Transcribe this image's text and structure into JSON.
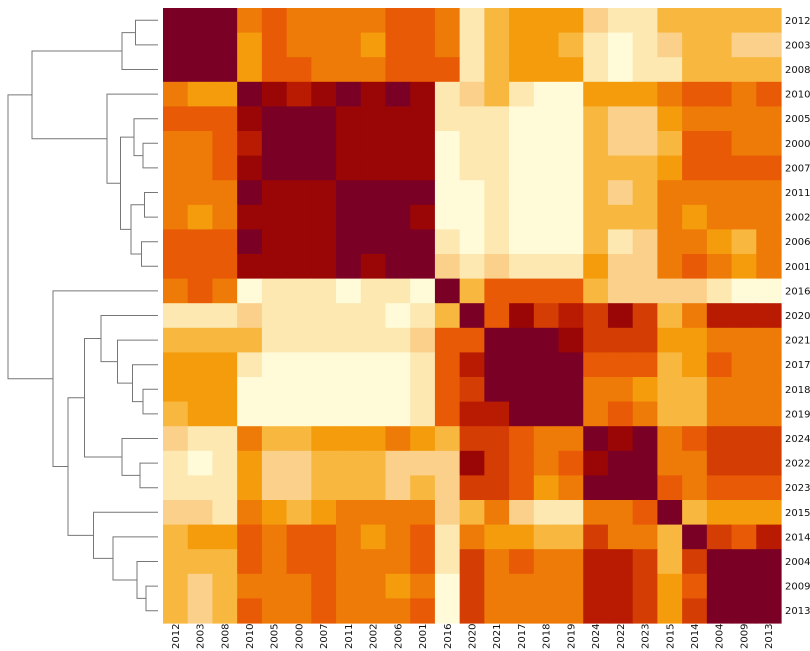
{
  "chart_data": {
    "type": "heatmap",
    "title": "",
    "xlabel": "",
    "ylabel": "",
    "labels": [
      "2012",
      "2003",
      "2008",
      "2010",
      "2005",
      "2000",
      "2007",
      "2011",
      "2002",
      "2006",
      "2001",
      "2016",
      "2020",
      "2021",
      "2017",
      "2018",
      "2019",
      "2024",
      "2022",
      "2023",
      "2015",
      "2014",
      "2004",
      "2009",
      "2013"
    ],
    "color_scale": [
      "#fffbd9",
      "#fce8b0",
      "#fad08a",
      "#f8b840",
      "#f49c0c",
      "#ee7a08",
      "#e85a05",
      "#d43e04",
      "#b81a02",
      "#9a0506",
      "#7a0025"
    ],
    "values": [
      [
        10,
        10,
        10,
        5,
        6,
        5,
        5,
        5,
        5,
        6,
        6,
        5,
        1,
        3,
        4,
        4,
        4,
        2,
        1,
        1,
        3,
        3,
        3,
        3,
        3
      ],
      [
        10,
        10,
        10,
        4,
        6,
        5,
        5,
        5,
        4,
        6,
        6,
        5,
        1,
        3,
        4,
        4,
        3,
        1,
        0,
        1,
        2,
        3,
        3,
        2,
        2
      ],
      [
        10,
        10,
        10,
        4,
        6,
        6,
        5,
        5,
        5,
        6,
        6,
        6,
        1,
        3,
        4,
        4,
        4,
        1,
        0,
        1,
        1,
        3,
        3,
        3,
        3
      ],
      [
        5,
        4,
        4,
        10,
        9,
        8,
        9,
        10,
        9,
        10,
        9,
        1,
        2,
        3,
        1,
        0,
        0,
        4,
        4,
        4,
        5,
        6,
        6,
        5,
        6
      ],
      [
        6,
        6,
        6,
        9,
        10,
        10,
        10,
        9,
        9,
        9,
        9,
        1,
        1,
        1,
        0,
        0,
        0,
        3,
        2,
        2,
        4,
        5,
        5,
        5,
        5
      ],
      [
        5,
        5,
        6,
        8,
        10,
        10,
        10,
        9,
        9,
        9,
        9,
        0,
        1,
        1,
        0,
        0,
        0,
        3,
        2,
        2,
        3,
        6,
        6,
        5,
        5
      ],
      [
        5,
        5,
        6,
        9,
        10,
        10,
        10,
        9,
        9,
        9,
        9,
        0,
        1,
        1,
        0,
        0,
        0,
        3,
        3,
        3,
        4,
        6,
        6,
        6,
        6
      ],
      [
        5,
        5,
        5,
        10,
        9,
        9,
        9,
        10,
        10,
        10,
        10,
        0,
        0,
        1,
        0,
        0,
        0,
        3,
        2,
        3,
        5,
        5,
        5,
        5,
        5
      ],
      [
        5,
        4,
        5,
        9,
        9,
        9,
        9,
        10,
        10,
        10,
        9,
        0,
        0,
        1,
        0,
        0,
        0,
        3,
        3,
        3,
        5,
        4,
        5,
        5,
        5
      ],
      [
        6,
        6,
        6,
        10,
        9,
        9,
        9,
        10,
        10,
        10,
        10,
        1,
        0,
        1,
        0,
        0,
        0,
        3,
        1,
        2,
        5,
        5,
        4,
        3,
        5
      ],
      [
        6,
        6,
        6,
        9,
        9,
        9,
        9,
        10,
        9,
        10,
        10,
        2,
        1,
        2,
        1,
        1,
        1,
        4,
        2,
        2,
        5,
        6,
        5,
        4,
        5
      ],
      [
        5,
        6,
        5,
        0,
        1,
        1,
        1,
        0,
        1,
        1,
        0,
        10,
        3,
        6,
        6,
        6,
        6,
        3,
        2,
        2,
        2,
        2,
        1,
        0,
        0
      ],
      [
        1,
        1,
        1,
        2,
        1,
        1,
        1,
        1,
        1,
        0,
        1,
        3,
        10,
        6,
        9,
        7,
        8,
        7,
        9,
        7,
        3,
        5,
        8,
        8,
        8
      ],
      [
        3,
        3,
        3,
        3,
        1,
        1,
        1,
        1,
        1,
        1,
        2,
        6,
        6,
        10,
        10,
        10,
        9,
        7,
        7,
        7,
        4,
        4,
        5,
        5,
        5
      ],
      [
        4,
        4,
        4,
        1,
        0,
        0,
        0,
        0,
        0,
        0,
        1,
        6,
        8,
        10,
        10,
        10,
        10,
        6,
        6,
        6,
        3,
        4,
        6,
        5,
        5
      ],
      [
        4,
        4,
        4,
        0,
        0,
        0,
        0,
        0,
        0,
        0,
        1,
        6,
        7,
        10,
        10,
        10,
        10,
        5,
        5,
        4,
        3,
        3,
        5,
        5,
        5
      ],
      [
        3,
        4,
        4,
        0,
        0,
        0,
        0,
        0,
        0,
        0,
        1,
        6,
        8,
        8,
        10,
        10,
        10,
        5,
        6,
        5,
        3,
        3,
        5,
        5,
        5
      ],
      [
        2,
        1,
        1,
        5,
        3,
        3,
        4,
        4,
        4,
        5,
        4,
        3,
        7,
        7,
        6,
        5,
        5,
        10,
        9,
        10,
        5,
        6,
        7,
        7,
        7
      ],
      [
        1,
        0,
        1,
        4,
        2,
        2,
        3,
        3,
        3,
        2,
        2,
        2,
        9,
        7,
        6,
        5,
        6,
        9,
        10,
        10,
        5,
        5,
        7,
        7,
        7
      ],
      [
        1,
        1,
        1,
        4,
        2,
        2,
        3,
        3,
        3,
        2,
        3,
        2,
        7,
        7,
        6,
        4,
        5,
        10,
        10,
        10,
        6,
        5,
        6,
        6,
        6
      ],
      [
        2,
        2,
        1,
        5,
        4,
        3,
        4,
        5,
        5,
        5,
        5,
        2,
        3,
        5,
        2,
        1,
        1,
        5,
        5,
        6,
        10,
        3,
        4,
        4,
        4
      ],
      [
        3,
        4,
        4,
        6,
        5,
        6,
        6,
        5,
        4,
        5,
        6,
        1,
        5,
        4,
        4,
        3,
        3,
        7,
        5,
        5,
        3,
        10,
        7,
        6,
        8
      ],
      [
        3,
        3,
        3,
        6,
        5,
        6,
        6,
        5,
        5,
        5,
        6,
        1,
        7,
        5,
        6,
        5,
        5,
        8,
        8,
        7,
        3,
        7,
        10,
        10,
        10
      ],
      [
        3,
        2,
        3,
        5,
        5,
        5,
        6,
        5,
        5,
        4,
        5,
        0,
        7,
        5,
        5,
        5,
        5,
        8,
        8,
        7,
        4,
        6,
        10,
        10,
        10
      ],
      [
        3,
        2,
        3,
        6,
        5,
        5,
        6,
        5,
        5,
        5,
        6,
        0,
        7,
        5,
        5,
        5,
        5,
        8,
        8,
        7,
        4,
        7,
        10,
        10,
        10
      ]
    ],
    "dendrogram": {
      "leaf_order": [
        "2012",
        "2003",
        "2008",
        "2010",
        "2005",
        "2000",
        "2007",
        "2011",
        "2002",
        "2006",
        "2001",
        "2016",
        "2020",
        "2021",
        "2017",
        "2018",
        "2019",
        "2024",
        "2022",
        "2023",
        "2015",
        "2014",
        "2004",
        "2009",
        "2013"
      ],
      "merges": [
        [
          0,
          1,
          0.15
        ],
        [
          25,
          2,
          0.24
        ],
        [
          5,
          6,
          0.1
        ],
        [
          4,
          27,
          0.16
        ],
        [
          7,
          8,
          0.09
        ],
        [
          9,
          10,
          0.11
        ],
        [
          29,
          30,
          0.18
        ],
        [
          28,
          31,
          0.25
        ],
        [
          3,
          32,
          0.34
        ],
        [
          26,
          33,
          0.84
        ],
        [
          15,
          16,
          0.1
        ],
        [
          14,
          35,
          0.17
        ],
        [
          13,
          36,
          0.27
        ],
        [
          12,
          37,
          0.38
        ],
        [
          18,
          19,
          0.12
        ],
        [
          17,
          39,
          0.24
        ],
        [
          38,
          40,
          0.49
        ],
        [
          23,
          24,
          0.08
        ],
        [
          22,
          42,
          0.14
        ],
        [
          21,
          43,
          0.3
        ],
        [
          20,
          44,
          0.43
        ],
        [
          41,
          45,
          0.6
        ],
        [
          11,
          46,
          0.7
        ],
        [
          34,
          47,
          1.0
        ]
      ]
    }
  }
}
